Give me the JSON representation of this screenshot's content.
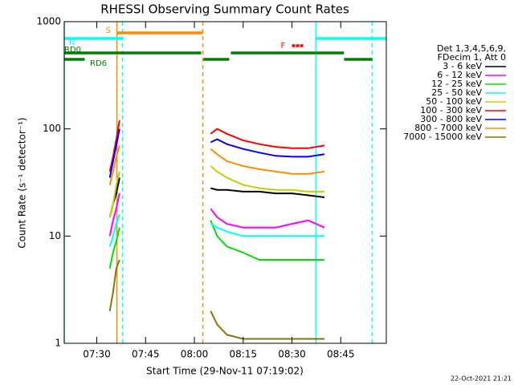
{
  "chart_data": {
    "type": "line",
    "title": "RHESSI Observing Summary Count Rates",
    "xlabel": "Start Time (29-Nov-11 07:19:02)",
    "ylabel": "Count Rate (s⁻¹ detector⁻¹)",
    "footer": "22-Oct-2021 21:21",
    "log_y": true,
    "xlim": [
      440,
      539
    ],
    "ylim": [
      1,
      1000
    ],
    "xticks": [
      {
        "value": 450,
        "label": "07:30"
      },
      {
        "value": 465,
        "label": "07:45"
      },
      {
        "value": 480,
        "label": "08:00"
      },
      {
        "value": 495,
        "label": "08:15"
      },
      {
        "value": 510,
        "label": "08:30"
      },
      {
        "value": 525,
        "label": "08:45"
      }
    ],
    "yticks": [
      1,
      10,
      100,
      1000
    ],
    "legend_title": [
      "Det 1,3,4,5,6,9,",
      "FDecim 1, Att 0"
    ],
    "legend_position": "right",
    "x": [
      454,
      455,
      456,
      457,
      470,
      485,
      487,
      490,
      495,
      500,
      505,
      510,
      515,
      520
    ],
    "series": [
      {
        "name": "3 - 6 keV",
        "color": "#000000",
        "values": [
          15,
          20,
          25,
          35,
          null,
          28,
          27,
          27,
          26,
          26,
          25,
          25,
          24,
          23
        ]
      },
      {
        "name": "6 - 12 keV",
        "color": "#ff00ff",
        "values": [
          10,
          14,
          18,
          25,
          null,
          18,
          15,
          13,
          12,
          12,
          12,
          13,
          14,
          12
        ]
      },
      {
        "name": "12 - 25 keV",
        "color": "#00e000",
        "values": [
          5,
          7,
          9,
          12,
          null,
          14,
          10,
          8,
          7,
          6,
          6,
          6,
          6,
          6
        ]
      },
      {
        "name": "25 - 50 keV",
        "color": "#00ffff",
        "values": [
          8,
          10,
          13,
          16,
          null,
          13,
          12,
          11,
          10,
          10,
          10,
          10,
          10,
          10
        ]
      },
      {
        "name": "50 - 100 keV",
        "color": "#cccc00",
        "values": [
          15,
          20,
          30,
          40,
          null,
          45,
          40,
          35,
          30,
          28,
          27,
          27,
          26,
          26
        ]
      },
      {
        "name": "100 - 300 keV",
        "color": "#ff0000",
        "values": [
          40,
          55,
          80,
          120,
          null,
          90,
          100,
          90,
          78,
          72,
          68,
          66,
          66,
          70
        ]
      },
      {
        "name": "300 - 800 keV",
        "color": "#0000ff",
        "values": [
          35,
          50,
          70,
          100,
          null,
          75,
          80,
          72,
          65,
          60,
          56,
          55,
          55,
          58
        ]
      },
      {
        "name": "800 - 7000 keV",
        "color": "#ff8c00",
        "values": [
          30,
          40,
          55,
          70,
          null,
          65,
          58,
          50,
          45,
          42,
          40,
          38,
          38,
          40
        ]
      },
      {
        "name": "7000 - 15000 keV",
        "color": "#8b7500",
        "values": [
          2,
          3,
          5,
          6,
          null,
          2,
          1.5,
          1.2,
          1.1,
          1.1,
          1.1,
          1.1,
          1.1,
          1.1
        ]
      }
    ],
    "flags": [
      {
        "label": "S",
        "color": "#ff8c00",
        "spans": [
          [
            456.2,
            482.6
          ]
        ]
      },
      {
        "label": "N",
        "color": "#00ffff",
        "spans": [
          [
            440,
            457.9
          ],
          [
            517.4,
            539
          ]
        ]
      },
      {
        "label": "F",
        "color": "#ff0000",
        "spans": [
          [
            510,
            513.7
          ]
        ]
      },
      {
        "label": "RD0",
        "color": "#008000",
        "spans": [
          [
            440,
            482.1
          ],
          [
            491.2,
            526
          ]
        ]
      },
      {
        "label": "RD6",
        "color": "#008000",
        "spans": [
          [
            440,
            446.3
          ],
          [
            482.8,
            490.7
          ],
          [
            526,
            534.7
          ]
        ]
      }
    ],
    "markers": [
      {
        "x": 456.2,
        "color": "#ff8c00",
        "dashed": false
      },
      {
        "x": 482.6,
        "color": "#ff8c00",
        "dashed": true
      },
      {
        "x": 440,
        "color": "#00ffff",
        "dashed": false
      },
      {
        "x": 517.4,
        "color": "#00ffff",
        "dashed": false
      },
      {
        "x": 457.9,
        "color": "#00ffff",
        "dashed": true
      },
      {
        "x": 534.7,
        "color": "#00ffff",
        "dashed": true
      }
    ]
  }
}
